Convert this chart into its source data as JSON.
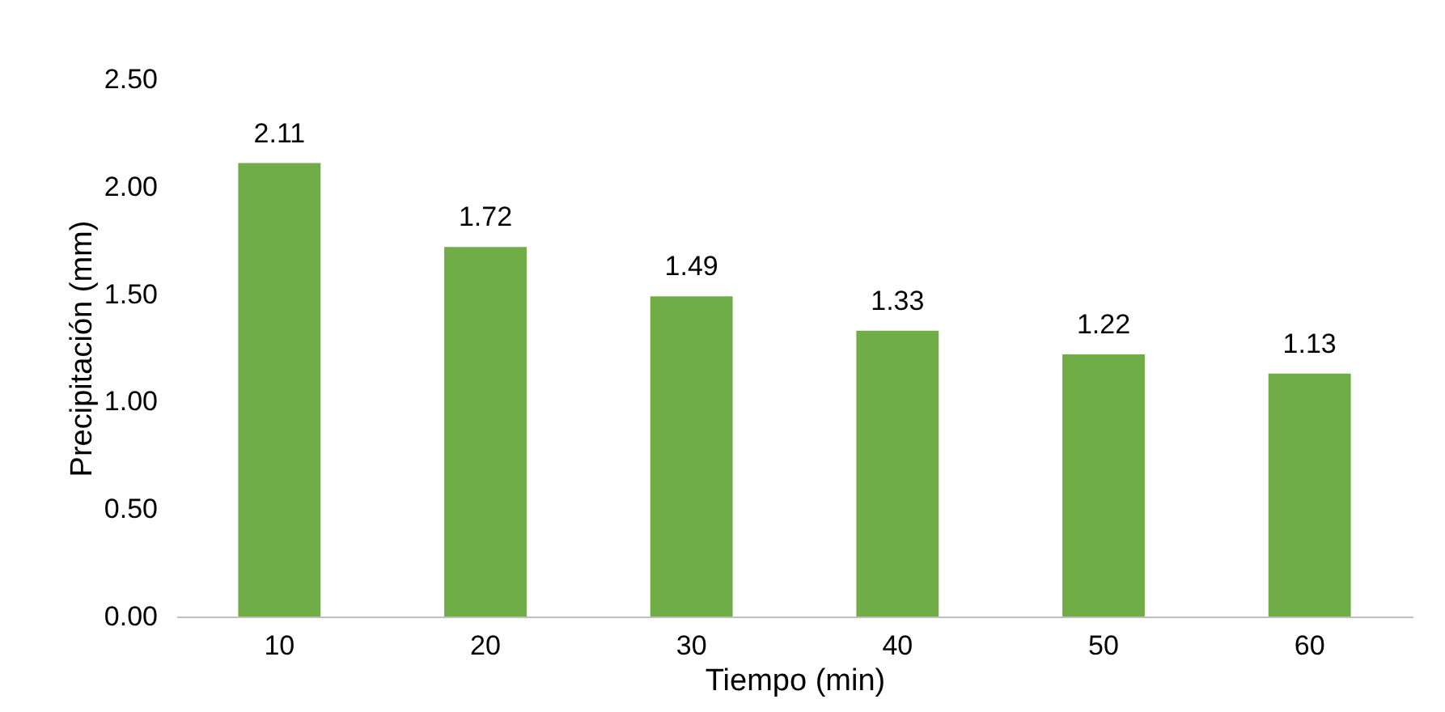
{
  "chart_data": {
    "type": "bar",
    "xlabel": "Tiempo (min)",
    "ylabel": "Precipitación (mm)",
    "categories": [
      "10",
      "20",
      "30",
      "40",
      "50",
      "60"
    ],
    "values": [
      2.11,
      1.72,
      1.49,
      1.33,
      1.22,
      1.13
    ],
    "color": "#70ad47",
    "data_labels": true,
    "grid": false,
    "ylim": [
      0,
      2.5
    ],
    "yticks": [
      {
        "value": 0,
        "label": "0.00"
      },
      {
        "value": 0.5,
        "label": "0.50"
      },
      {
        "value": 1,
        "label": "1.00"
      },
      {
        "value": 1.5,
        "label": "1.50"
      },
      {
        "value": 2,
        "label": "2.00"
      },
      {
        "value": 2.5,
        "label": "2.50"
      }
    ]
  }
}
